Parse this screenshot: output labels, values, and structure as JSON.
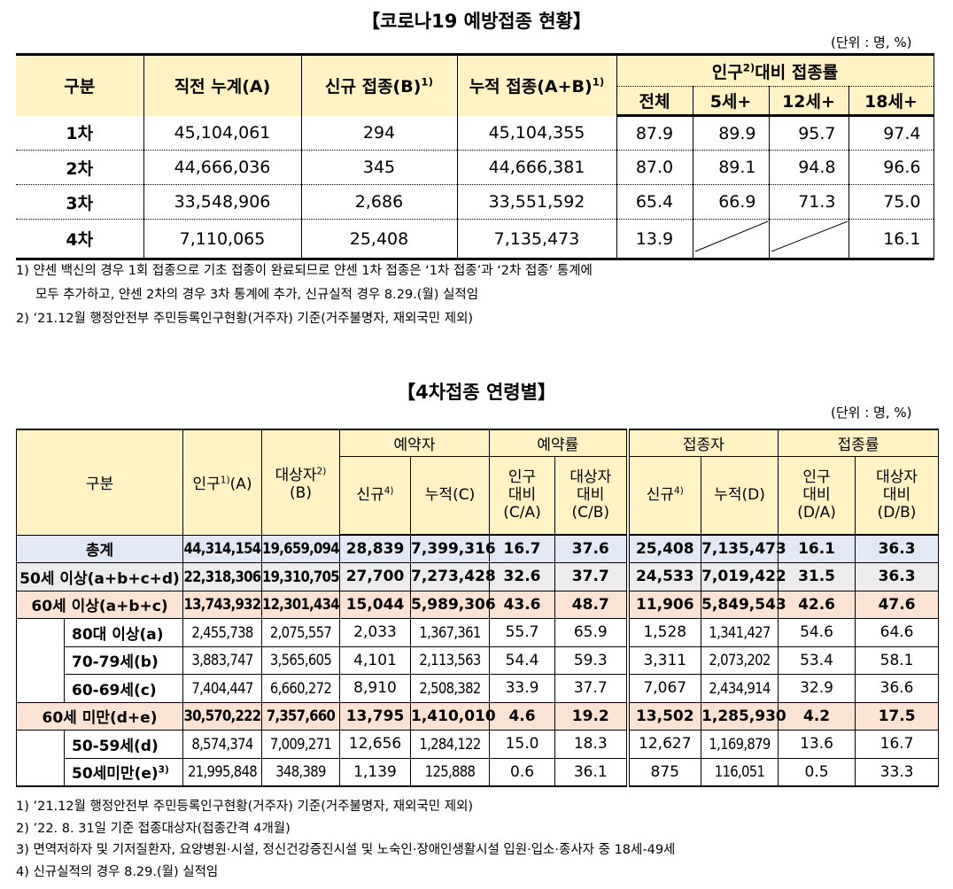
{
  "table1": {
    "title": "【코로나19 예방접종 현황】",
    "unit": "(단위 : 명, %)",
    "headers": {
      "category": "구분",
      "prev_total": "직전 누계(A)",
      "new": "신규 접종(B)",
      "new_sup": "1)",
      "cumulative": "누적 접종(A+B)",
      "cumulative_sup": "1)",
      "ratio_group_a": "인구",
      "ratio_group_sup": "2)",
      "ratio_group_b": "대비 접종률",
      "ratio_all": "전체",
      "ratio_5": "5세+",
      "ratio_12": "12세+",
      "ratio_18": "18세+"
    },
    "rows": [
      {
        "label": "1차",
        "prev": "45,104,061",
        "new": "294",
        "cum": "45,104,355",
        "all": "87.9",
        "r5": "89.9",
        "r12": "95.7",
        "r18": "97.4"
      },
      {
        "label": "2차",
        "prev": "44,666,036",
        "new": "345",
        "cum": "44,666,381",
        "all": "87.0",
        "r5": "89.1",
        "r12": "94.8",
        "r18": "96.6"
      },
      {
        "label": "3차",
        "prev": "33,548,906",
        "new": "2,686",
        "cum": "33,551,592",
        "all": "65.4",
        "r5": "66.9",
        "r12": "71.3",
        "r18": "75.0"
      },
      {
        "label": "4차",
        "prev": "7,110,065",
        "new": "25,408",
        "cum": "7,135,473",
        "all": "13.9",
        "r5": "",
        "r12": "",
        "r18": "16.1"
      }
    ],
    "notes": [
      "1) 얀센 백신의 경우 1회 접종으로 기초 접종이 완료되므로 얀센 1차 접종은 ‘1차 접종’과 ‘2차 접종’ 통계에",
      "    모두 추가하고, 얀센 2차의 경우 3차 통계에 추가, 신규실적 경우 8.29.(월) 실적임",
      "2) ’21.12월 행정안전부 주민등록인구현황(거주자) 기준(거주불명자, 재외국민 제외)"
    ]
  },
  "table2": {
    "title": "【4차접종 연령별】",
    "unit": "(단위 : 명, %)",
    "headers": {
      "category": "구분",
      "population": "인구",
      "population_sup": "1)",
      "population_b": "(A)",
      "target": "대상자",
      "target_sup": "2)",
      "target_b": "(B)",
      "reserve_group": "예약자",
      "reserve_rate_group": "예약률",
      "vacc_group": "접종자",
      "vacc_rate_group": "접종률",
      "new": "신규",
      "new_sup": "4)",
      "cum_c": "누적(C)",
      "cum_d": "누적(D)",
      "pop_ratio_c": [
        "인구",
        "대비",
        "(C/A)"
      ],
      "tgt_ratio_c": [
        "대상자",
        "대비",
        "(C/B)"
      ],
      "pop_ratio_d": [
        "인구",
        "대비",
        "(D/A)"
      ],
      "tgt_ratio_d": [
        "대상자",
        "대비",
        "(D/B)"
      ]
    },
    "rows": [
      {
        "label": "총계",
        "pop": "44,314,154",
        "tgt": "19,659,094",
        "rnew": "28,839",
        "rcum": "7,399,316",
        "rpa": "16.7",
        "rpb": "37.6",
        "vnew": "25,408",
        "vcum": "7,135,473",
        "vpa": "16.1",
        "vpb": "36.3"
      },
      {
        "label": "50세 이상(a+b+c+d)",
        "pop": "22,318,306",
        "tgt": "19,310,705",
        "rnew": "27,700",
        "rcum": "7,273,428",
        "rpa": "32.6",
        "rpb": "37.7",
        "vnew": "24,533",
        "vcum": "7,019,422",
        "vpa": "31.5",
        "vpb": "36.3"
      },
      {
        "label": "60세 이상(a+b+c)",
        "pop": "13,743,932",
        "tgt": "12,301,434",
        "rnew": "15,044",
        "rcum": "5,989,306",
        "rpa": "43.6",
        "rpb": "48.7",
        "vnew": "11,906",
        "vcum": "5,849,543",
        "vpa": "42.6",
        "vpb": "47.6"
      },
      {
        "label": "80대 이상(a)",
        "pop": "2,455,738",
        "tgt": "2,075,557",
        "rnew": "2,033",
        "rcum": "1,367,361",
        "rpa": "55.7",
        "rpb": "65.9",
        "vnew": "1,528",
        "vcum": "1,341,427",
        "vpa": "54.6",
        "vpb": "64.6"
      },
      {
        "label": "70-79세(b)",
        "pop": "3,883,747",
        "tgt": "3,565,605",
        "rnew": "4,101",
        "rcum": "2,113,563",
        "rpa": "54.4",
        "rpb": "59.3",
        "vnew": "3,311",
        "vcum": "2,073,202",
        "vpa": "53.4",
        "vpb": "58.1"
      },
      {
        "label": "60-69세(c)",
        "pop": "7,404,447",
        "tgt": "6,660,272",
        "rnew": "8,910",
        "rcum": "2,508,382",
        "rpa": "33.9",
        "rpb": "37.7",
        "vnew": "7,067",
        "vcum": "2,434,914",
        "vpa": "32.9",
        "vpb": "36.6"
      },
      {
        "label": "60세 미만(d+e)",
        "pop": "30,570,222",
        "tgt": "7,357,660",
        "rnew": "13,795",
        "rcum": "1,410,010",
        "rpa": "4.6",
        "rpb": "19.2",
        "vnew": "13,502",
        "vcum": "1,285,930",
        "vpa": "4.2",
        "vpb": "17.5"
      },
      {
        "label": "50-59세(d)",
        "pop": "8,574,374",
        "tgt": "7,009,271",
        "rnew": "12,656",
        "rcum": "1,284,122",
        "rpa": "15.0",
        "rpb": "18.3",
        "vnew": "12,627",
        "vcum": "1,169,879",
        "vpa": "13.6",
        "vpb": "16.7"
      },
      {
        "label": "50세미만(e)",
        "label_sup": "3)",
        "pop": "21,995,848",
        "tgt": "348,389",
        "rnew": "1,139",
        "rcum": "125,888",
        "rpa": "0.6",
        "rpb": "36.1",
        "vnew": "875",
        "vcum": "116,051",
        "vpa": "0.5",
        "vpb": "33.3"
      }
    ],
    "notes": [
      "1) ’21.12월 행정안전부 주민등록인구현황(거주자) 기준(거주불명자, 재외국민 제외)",
      "2) ’22. 8. 31일 기준 접종대상자(접종간격 4개월)",
      "3) 면역저하자 및 기저질환자, 요양병원·시설, 정신건강증진시설 및 노숙인·장애인생활시설 입원·입소·종사자 중 18세-49세",
      "4) 신규실적의 경우 8.29.(월) 실적임"
    ]
  }
}
